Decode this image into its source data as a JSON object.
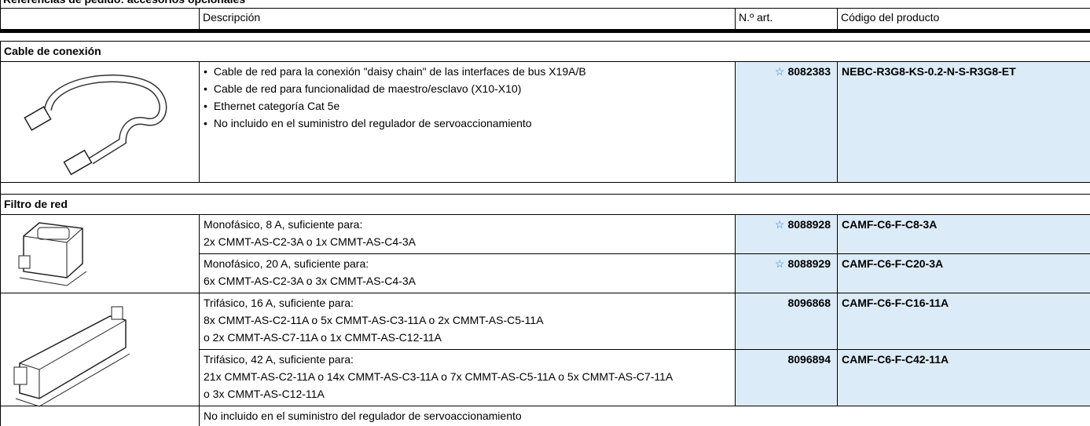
{
  "title": "Referencias de pedido: accesorios opcionales",
  "table": {
    "header": [
      "Descripción",
      "N.º art.",
      "Código del producto"
    ],
    "sections": [
      {
        "name": "Cable de conexión",
        "rows": [
          {
            "description": [
              "Cable de red para la conexión \"daisy chain\" de las interfaces de bus X19A/B",
              "Cable de red para funcionalidad de maestro/esclavo (X10-X10)",
              "Ethernet categoría Cat 5e",
              "No incluido en el suministro del regulador de servoaccionamiento"
            ],
            "bullets": true,
            "star": true,
            "part_number": "8082383",
            "product_code": "NEBC-R3G8-KS-0.2-N-S-R3G8-ET"
          }
        ]
      },
      {
        "name": "Filtro de red",
        "rows": [
          {
            "description": [
              "Monofásico, 8 A, suficiente para:",
              "2x CMMT-AS-C2-3A o 1x CMMT-AS-C4-3A"
            ],
            "bullets": false,
            "star": true,
            "part_number": "8088928",
            "product_code": "CAMF-C6-F-C8-3A"
          },
          {
            "description": [
              "Monofásico, 20 A, suficiente para:",
              "6x CMMT-AS-C2-3A o 3x CMMT-AS-C4-3A"
            ],
            "bullets": false,
            "star": true,
            "part_number": "8088929",
            "product_code": "CAMF-C6-F-C20-3A"
          },
          {
            "description": [
              "Trifásico, 16 A, suficiente para:",
              "8x CMMT-AS-C2-11A o 5x CMMT-AS-C3-11A o 2x CMMT-AS-C5-11A",
              "o 2x CMMT-AS-C7-11A o 1x CMMT-AS-C12-11A"
            ],
            "bullets": false,
            "star": false,
            "part_number": "8096868",
            "product_code": "CAMF-C6-F-C16-11A"
          },
          {
            "description": [
              "Trifásico, 42 A, suficiente para:",
              "21x CMMT-AS-C2-11A o 14x CMMT-AS-C3-11A o 7x CMMT-AS-C5-11A o 5x CMMT-AS-C7-11A",
              "o 3x CMMT-AS-C12-11A"
            ],
            "bullets": false,
            "star": false,
            "part_number": "8096894",
            "product_code": "CAMF-C6-F-C42-11A"
          }
        ],
        "note": "No incluido en el suministro del regulador de servoaccionamiento"
      }
    ]
  }
}
